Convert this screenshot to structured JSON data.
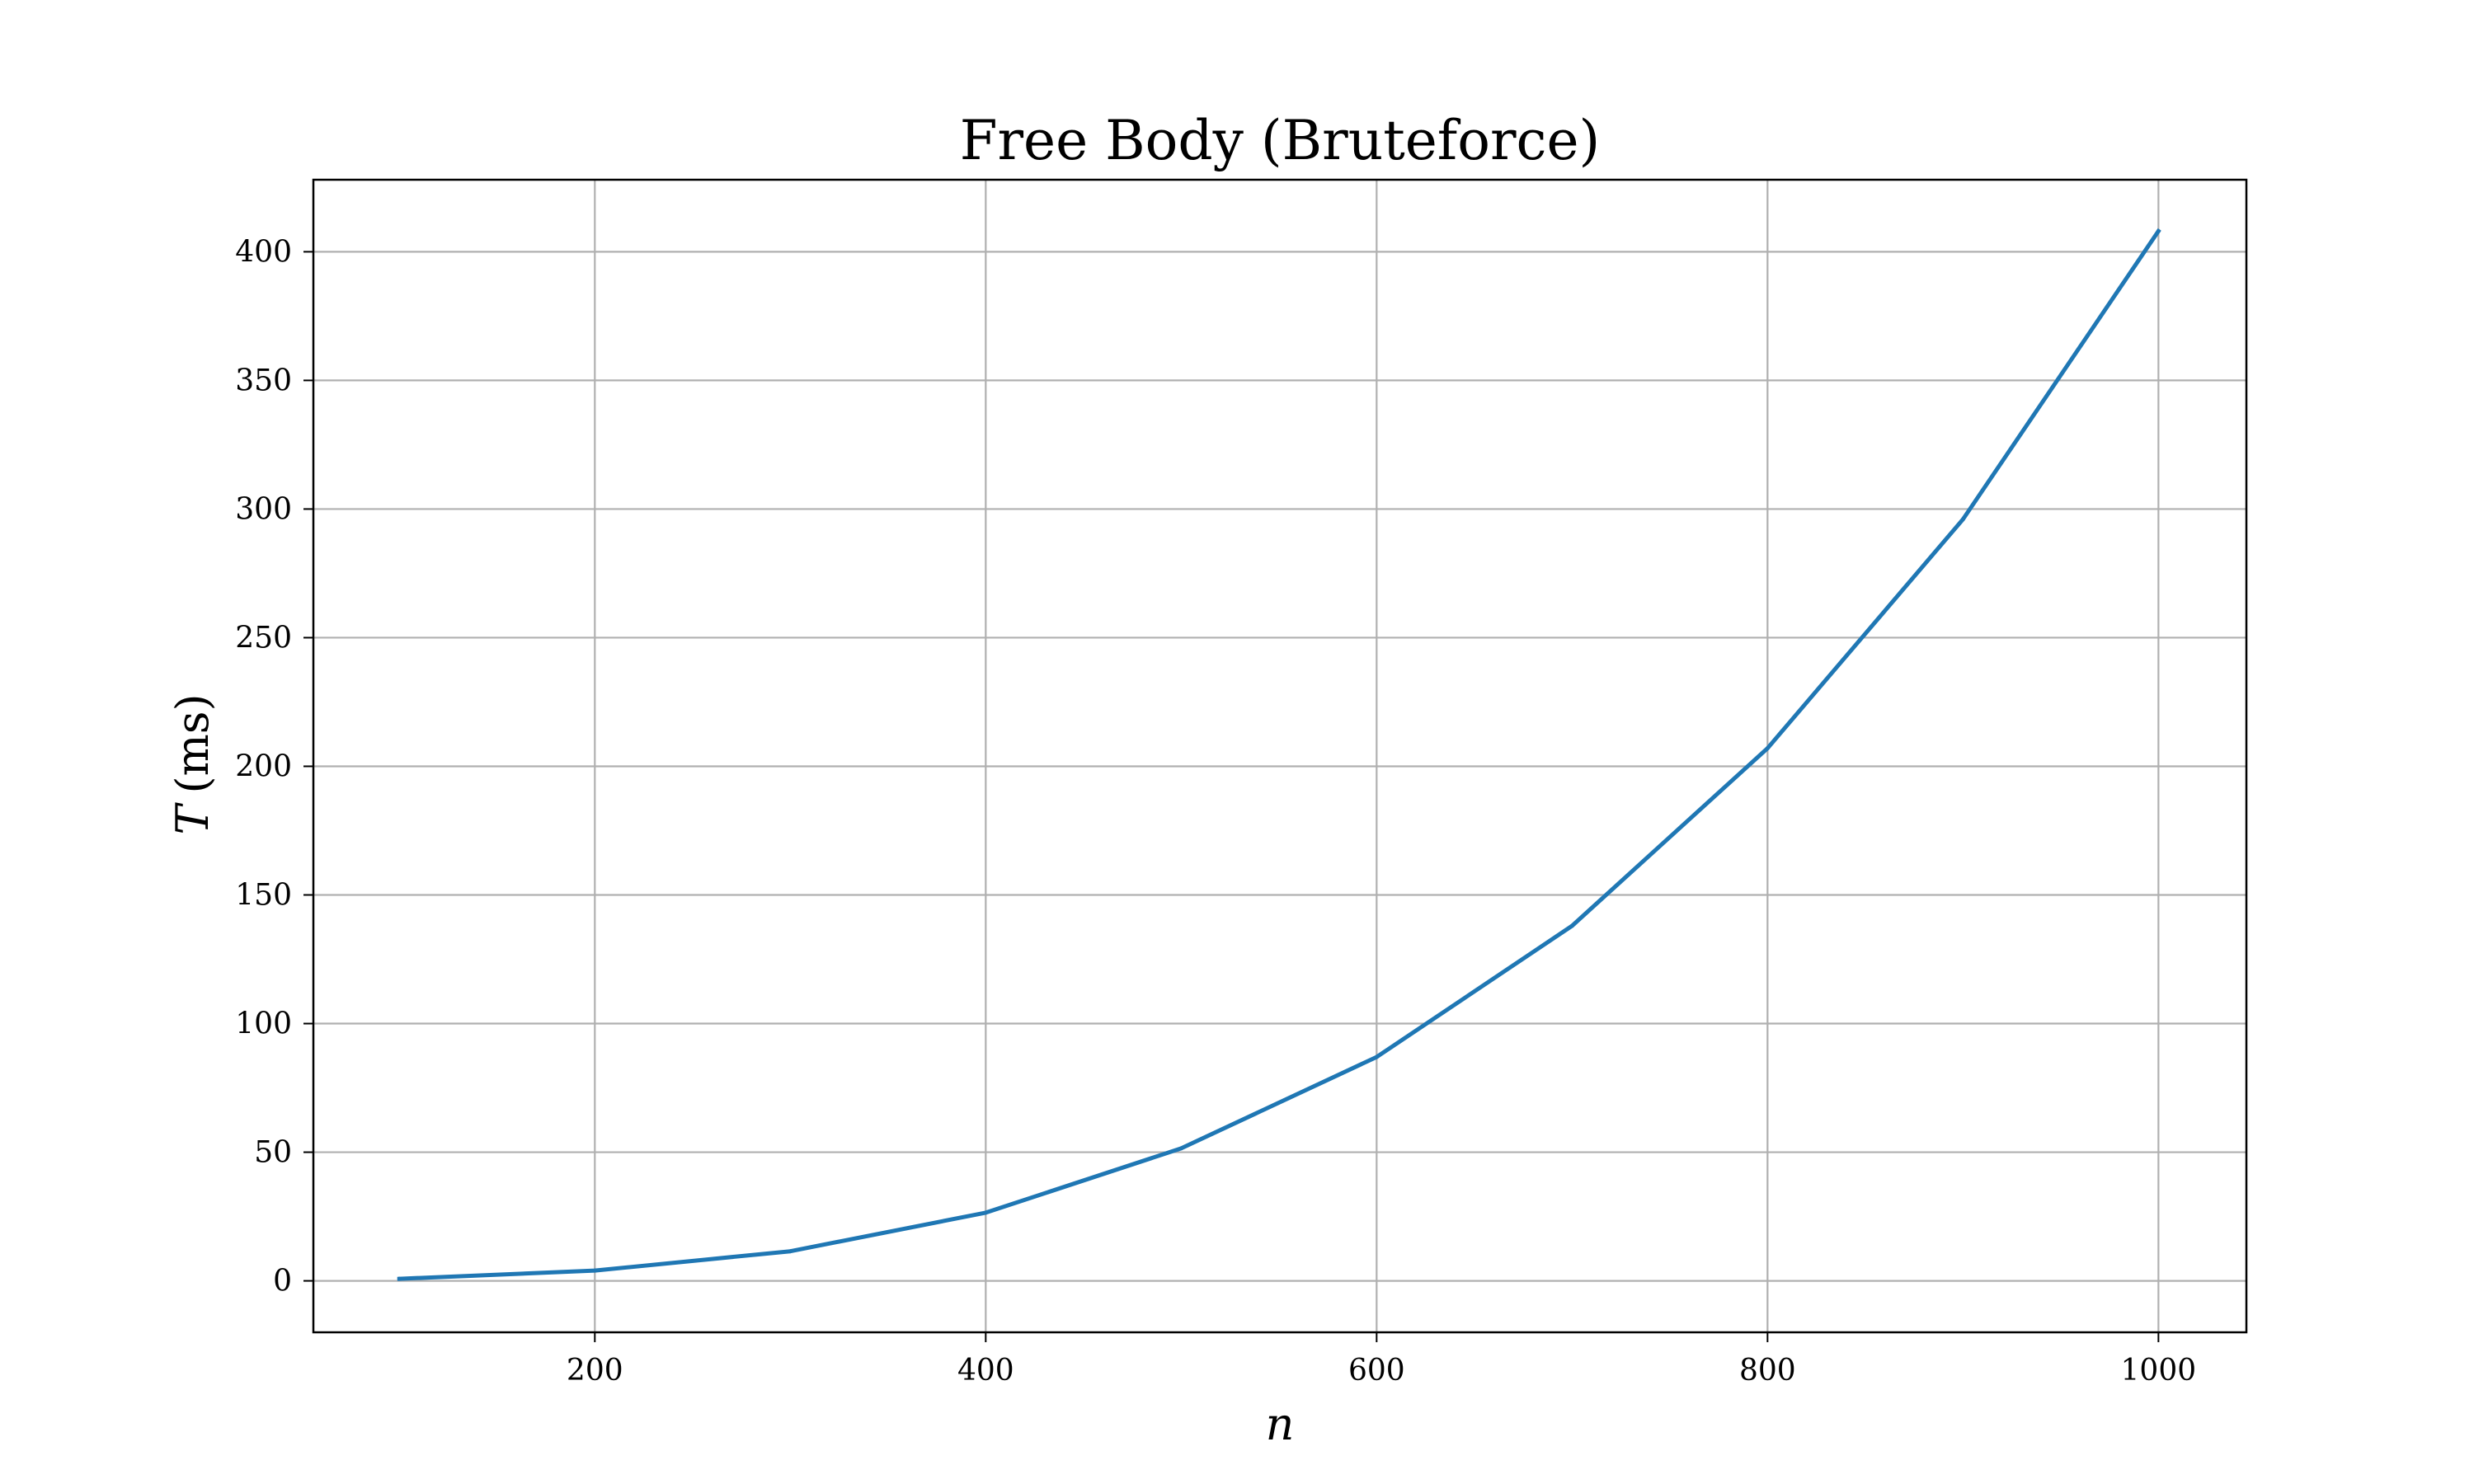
{
  "chart_data": {
    "type": "line",
    "title": "Free Body (Bruteforce)",
    "xlabel_var": "n",
    "ylabel_var": "T",
    "ylabel_unit": "(ms)",
    "xlim": [
      56,
      1045
    ],
    "ylim": [
      -20,
      428
    ],
    "x_ticks": [
      200,
      400,
      600,
      800,
      1000
    ],
    "y_ticks": [
      0,
      50,
      100,
      150,
      200,
      250,
      300,
      350,
      400
    ],
    "grid": true,
    "series": [
      {
        "color": "#1f77b4",
        "x": [
          100,
          200,
          300,
          400,
          500,
          600,
          700,
          800,
          900,
          1000
        ],
        "y": [
          0.8,
          4.0,
          11.5,
          26.5,
          51.5,
          87.0,
          138.0,
          207.0,
          296.0,
          408.0
        ]
      }
    ]
  }
}
